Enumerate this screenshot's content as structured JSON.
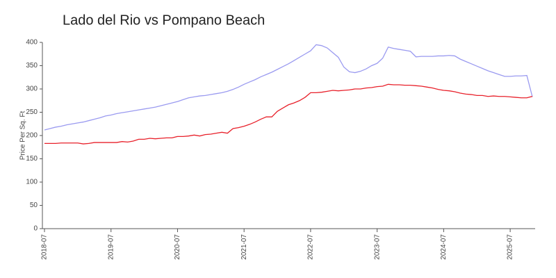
{
  "chart_data": {
    "type": "line",
    "title": "Lado del Rio vs Pompano Beach",
    "y_label": "Price Per Sq. Ft",
    "x": [
      "2018-07",
      "2018-08",
      "2018-09",
      "2018-10",
      "2018-11",
      "2018-12",
      "2019-01",
      "2019-02",
      "2019-03",
      "2019-04",
      "2019-05",
      "2019-06",
      "2019-07",
      "2019-08",
      "2019-09",
      "2019-10",
      "2019-11",
      "2019-12",
      "2020-01",
      "2020-02",
      "2020-03",
      "2020-04",
      "2020-05",
      "2020-06",
      "2020-07",
      "2020-08",
      "2020-09",
      "2020-10",
      "2020-11",
      "2020-12",
      "2021-01",
      "2021-02",
      "2021-03",
      "2021-04",
      "2021-05",
      "2021-06",
      "2021-07",
      "2021-08",
      "2021-09",
      "2021-10",
      "2021-11",
      "2021-12",
      "2022-01",
      "2022-02",
      "2022-03",
      "2022-04",
      "2022-05",
      "2022-06",
      "2022-07",
      "2022-08",
      "2022-09",
      "2022-10",
      "2022-11",
      "2022-12",
      "2023-01",
      "2023-02",
      "2023-03",
      "2023-04",
      "2023-05",
      "2023-06",
      "2023-07",
      "2023-08",
      "2023-09",
      "2023-10",
      "2023-11",
      "2023-12",
      "2024-01",
      "2024-02",
      "2024-03",
      "2024-04",
      "2024-05",
      "2024-06",
      "2024-07",
      "2024-08",
      "2024-09",
      "2024-10",
      "2024-11",
      "2024-12",
      "2025-01",
      "2025-02",
      "2025-03",
      "2025-04",
      "2025-05",
      "2025-06",
      "2025-07",
      "2025-08",
      "2025-09",
      "2025-10",
      "2025-11"
    ],
    "series": [
      {
        "color": "#9a9af0",
        "values": [
          212,
          215,
          218,
          220,
          223,
          225,
          227,
          229,
          232,
          235,
          238,
          242,
          244,
          247,
          249,
          251,
          253,
          255,
          257,
          259,
          261,
          264,
          267,
          270,
          273,
          277,
          281,
          283,
          285,
          286,
          288,
          290,
          292,
          295,
          299,
          304,
          310,
          315,
          320,
          326,
          331,
          336,
          342,
          348,
          354,
          361,
          368,
          375,
          382,
          395,
          393,
          388,
          378,
          368,
          347,
          337,
          335,
          338,
          343,
          350,
          355,
          366,
          390,
          387,
          385,
          383,
          381,
          369,
          370,
          370,
          370,
          371,
          371,
          372,
          371,
          364,
          359,
          354,
          349,
          344,
          339,
          335,
          331,
          327,
          327,
          328,
          328,
          329,
          283
        ]
      },
      {
        "color": "#e8202a",
        "values": [
          183,
          183,
          183,
          184,
          184,
          184,
          184,
          182,
          183,
          185,
          185,
          185,
          185,
          185,
          187,
          186,
          188,
          192,
          192,
          194,
          193,
          194,
          195,
          195,
          198,
          198,
          199,
          201,
          199,
          202,
          203,
          205,
          207,
          205,
          215,
          217,
          220,
          224,
          229,
          235,
          240,
          240,
          252,
          259,
          266,
          270,
          275,
          282,
          292,
          292,
          293,
          295,
          297,
          296,
          297,
          298,
          300,
          300,
          302,
          303,
          305,
          306,
          310,
          309,
          309,
          308,
          308,
          307,
          306,
          304,
          302,
          299,
          297,
          296,
          294,
          291,
          289,
          288,
          286,
          286,
          284,
          285,
          284,
          284,
          283,
          282,
          281,
          281,
          284
        ]
      }
    ],
    "xticks": [
      "2018-07",
      "2019-07",
      "2020-07",
      "2021-07",
      "2022-07",
      "2023-07",
      "2024-07",
      "2025-07"
    ],
    "ylim": [
      0,
      400
    ],
    "yticks": [
      0,
      50,
      100,
      150,
      200,
      250,
      300,
      350,
      400
    ]
  }
}
